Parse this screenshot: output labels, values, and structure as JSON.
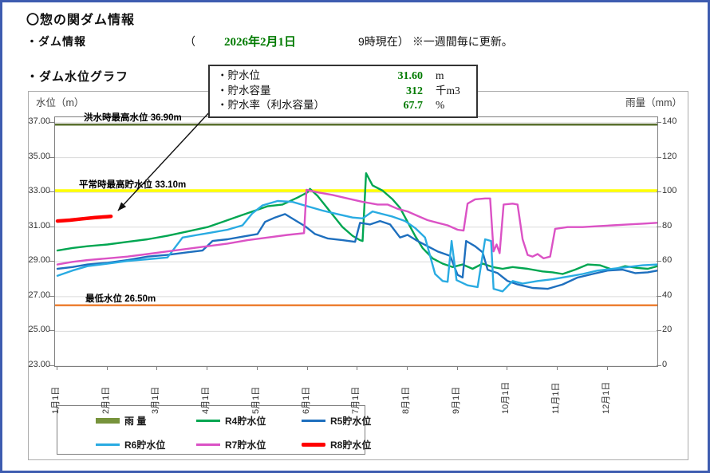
{
  "page": {
    "title": "〇惣の関ダム情報",
    "info_label": "・ダム情報",
    "info_paren_open": "（",
    "info_date": "2026年2月1日",
    "info_time": "9時現在）",
    "info_note": "※一週間毎に更新。",
    "graph_label": "・ダム水位グラフ"
  },
  "callout": {
    "value_color": "#007a00",
    "rows": [
      {
        "label": "・貯水位",
        "value": "31.60",
        "unit": "m"
      },
      {
        "label": "・貯水容量",
        "value": "312",
        "unit": "千m3"
      },
      {
        "label": "・貯水率（利水容量）",
        "value": "67.7",
        "unit": "%"
      }
    ]
  },
  "chart_data": {
    "type": "line",
    "left_axis": {
      "label": "水位（m）",
      "min": 23,
      "max": 37,
      "step": 2,
      "tick_labels": [
        "37.00",
        "35.00",
        "33.00",
        "31.00",
        "29.00",
        "27.00",
        "25.00",
        "23.00"
      ]
    },
    "right_axis": {
      "label": "雨量（mm）",
      "min": 0,
      "max": 140,
      "step": 20,
      "tick_labels": [
        "140",
        "120",
        "100",
        "80",
        "60",
        "40",
        "20",
        "0"
      ]
    },
    "x_axis": {
      "ticks": [
        "1月1日",
        "2月1日",
        "3月1日",
        "4月1日",
        "5月1日",
        "6月1日",
        "7月1日",
        "8月1日",
        "9月1日",
        "10月1日",
        "11月1日",
        "12月1日"
      ]
    },
    "reference_lines": [
      {
        "label": "洪水時最高水位 36.90m",
        "value": 36.9,
        "color": "#5a702f",
        "width": 2.5
      },
      {
        "label": "平常時最高貯水位 33.10m",
        "value": 33.1,
        "color": "#ffff00",
        "width": 3.5
      },
      {
        "label": "最低水位 26.50m",
        "value": 26.5,
        "color": "#ed8033",
        "width": 2.5
      }
    ],
    "rainfall": {
      "name": "雨 量",
      "color": "#77933c",
      "unit": "mm",
      "values": []
    },
    "series": [
      {
        "name": "R4貯水位",
        "color": "#00a651",
        "width": 2.4,
        "points": [
          [
            0,
            29.65
          ],
          [
            0.3,
            29.8
          ],
          [
            0.6,
            29.9
          ],
          [
            1,
            30.0
          ],
          [
            1.4,
            30.15
          ],
          [
            1.8,
            30.3
          ],
          [
            2.2,
            30.5
          ],
          [
            2.6,
            30.75
          ],
          [
            3,
            31.0
          ],
          [
            3.3,
            31.3
          ],
          [
            3.6,
            31.6
          ],
          [
            3.9,
            31.9
          ],
          [
            4.2,
            32.2
          ],
          [
            4.5,
            32.3
          ],
          [
            4.8,
            32.7
          ],
          [
            5.0,
            33.0
          ],
          [
            5.05,
            33.2
          ],
          [
            5.2,
            32.8
          ],
          [
            5.45,
            31.9
          ],
          [
            5.7,
            31.0
          ],
          [
            5.9,
            30.5
          ],
          [
            6.05,
            30.25
          ],
          [
            6.1,
            30.2
          ],
          [
            6.17,
            34.1
          ],
          [
            6.3,
            33.4
          ],
          [
            6.5,
            33.1
          ],
          [
            6.7,
            32.6
          ],
          [
            6.85,
            32.1
          ],
          [
            7.0,
            31.3
          ],
          [
            7.15,
            30.5
          ],
          [
            7.3,
            29.8
          ],
          [
            7.5,
            29.2
          ],
          [
            7.7,
            28.9
          ],
          [
            7.9,
            28.7
          ],
          [
            8.1,
            28.85
          ],
          [
            8.3,
            28.6
          ],
          [
            8.5,
            28.9
          ],
          [
            8.7,
            28.7
          ],
          [
            8.9,
            28.6
          ],
          [
            9.1,
            28.7
          ],
          [
            9.4,
            28.6
          ],
          [
            9.7,
            28.45
          ],
          [
            9.9,
            28.4
          ],
          [
            10.1,
            28.3
          ],
          [
            10.35,
            28.55
          ],
          [
            10.6,
            28.85
          ],
          [
            10.85,
            28.8
          ],
          [
            11.1,
            28.55
          ],
          [
            11.35,
            28.75
          ],
          [
            11.6,
            28.65
          ],
          [
            11.8,
            28.6
          ],
          [
            12,
            28.75
          ]
        ]
      },
      {
        "name": "R5貯水位",
        "color": "#1e6fbe",
        "width": 2.4,
        "points": [
          [
            0,
            28.6
          ],
          [
            0.3,
            28.7
          ],
          [
            0.6,
            28.85
          ],
          [
            1,
            28.95
          ],
          [
            1.4,
            29.1
          ],
          [
            1.8,
            29.3
          ],
          [
            2.2,
            29.4
          ],
          [
            2.6,
            29.55
          ],
          [
            2.9,
            29.65
          ],
          [
            3.1,
            30.2
          ],
          [
            3.4,
            30.3
          ],
          [
            3.7,
            30.45
          ],
          [
            4,
            30.6
          ],
          [
            4.15,
            31.3
          ],
          [
            4.35,
            31.55
          ],
          [
            4.55,
            31.75
          ],
          [
            4.75,
            31.4
          ],
          [
            4.95,
            31.05
          ],
          [
            5.15,
            30.6
          ],
          [
            5.4,
            30.35
          ],
          [
            5.7,
            30.25
          ],
          [
            5.95,
            30.15
          ],
          [
            6.05,
            31.25
          ],
          [
            6.25,
            31.15
          ],
          [
            6.45,
            31.35
          ],
          [
            6.65,
            31.15
          ],
          [
            6.85,
            30.4
          ],
          [
            7.0,
            30.55
          ],
          [
            7.2,
            30.2
          ],
          [
            7.4,
            29.9
          ],
          [
            7.6,
            29.6
          ],
          [
            7.85,
            29.35
          ],
          [
            8.0,
            28.25
          ],
          [
            8.1,
            28.1
          ],
          [
            8.17,
            30.2
          ],
          [
            8.35,
            29.9
          ],
          [
            8.5,
            29.55
          ],
          [
            8.6,
            28.55
          ],
          [
            8.8,
            28.35
          ],
          [
            9.0,
            27.9
          ],
          [
            9.2,
            27.7
          ],
          [
            9.5,
            27.5
          ],
          [
            9.8,
            27.45
          ],
          [
            10.1,
            27.7
          ],
          [
            10.4,
            28.1
          ],
          [
            10.7,
            28.3
          ],
          [
            11.0,
            28.5
          ],
          [
            11.3,
            28.55
          ],
          [
            11.55,
            28.35
          ],
          [
            11.8,
            28.4
          ],
          [
            12,
            28.5
          ]
        ]
      },
      {
        "name": "R6貯水位",
        "color": "#29abe2",
        "width": 2.4,
        "points": [
          [
            0,
            28.2
          ],
          [
            0.3,
            28.5
          ],
          [
            0.6,
            28.75
          ],
          [
            1,
            28.9
          ],
          [
            1.4,
            29.05
          ],
          [
            1.8,
            29.15
          ],
          [
            2.2,
            29.25
          ],
          [
            2.5,
            30.4
          ],
          [
            2.8,
            30.55
          ],
          [
            3.1,
            30.7
          ],
          [
            3.4,
            30.85
          ],
          [
            3.7,
            31.1
          ],
          [
            3.9,
            31.8
          ],
          [
            4.1,
            32.25
          ],
          [
            4.4,
            32.5
          ],
          [
            4.7,
            32.45
          ],
          [
            5.0,
            32.2
          ],
          [
            5.3,
            31.95
          ],
          [
            5.6,
            31.75
          ],
          [
            5.9,
            31.55
          ],
          [
            6.1,
            31.5
          ],
          [
            6.3,
            31.9
          ],
          [
            6.5,
            31.75
          ],
          [
            6.7,
            31.6
          ],
          [
            6.95,
            31.35
          ],
          [
            7.15,
            30.95
          ],
          [
            7.35,
            30.4
          ],
          [
            7.55,
            28.3
          ],
          [
            7.7,
            27.9
          ],
          [
            7.8,
            27.85
          ],
          [
            7.88,
            30.2
          ],
          [
            7.98,
            27.95
          ],
          [
            8.2,
            27.65
          ],
          [
            8.4,
            27.55
          ],
          [
            8.55,
            30.3
          ],
          [
            8.67,
            30.2
          ],
          [
            8.72,
            27.45
          ],
          [
            8.9,
            27.3
          ],
          [
            9.1,
            27.9
          ],
          [
            9.3,
            27.75
          ],
          [
            9.6,
            27.9
          ],
          [
            9.9,
            28.0
          ],
          [
            10.2,
            28.15
          ],
          [
            10.5,
            28.3
          ],
          [
            10.8,
            28.5
          ],
          [
            11.1,
            28.6
          ],
          [
            11.4,
            28.7
          ],
          [
            11.7,
            28.8
          ],
          [
            12,
            28.85
          ]
        ]
      },
      {
        "name": "R7貯水位",
        "color": "#db52c5",
        "width": 2.4,
        "points": [
          [
            0,
            28.85
          ],
          [
            0.3,
            29.0
          ],
          [
            0.6,
            29.1
          ],
          [
            1,
            29.2
          ],
          [
            1.4,
            29.3
          ],
          [
            1.8,
            29.45
          ],
          [
            2.2,
            29.6
          ],
          [
            2.6,
            29.75
          ],
          [
            3,
            29.9
          ],
          [
            3.4,
            30.05
          ],
          [
            3.8,
            30.25
          ],
          [
            4.2,
            30.4
          ],
          [
            4.6,
            30.55
          ],
          [
            4.93,
            30.65
          ],
          [
            4.98,
            33.15
          ],
          [
            5.2,
            33.0
          ],
          [
            5.5,
            32.85
          ],
          [
            5.8,
            32.65
          ],
          [
            6.1,
            32.45
          ],
          [
            6.4,
            32.3
          ],
          [
            6.6,
            32.3
          ],
          [
            6.8,
            32.05
          ],
          [
            7.0,
            31.9
          ],
          [
            7.2,
            31.65
          ],
          [
            7.4,
            31.4
          ],
          [
            7.6,
            31.25
          ],
          [
            7.8,
            31.1
          ],
          [
            8.0,
            30.85
          ],
          [
            8.12,
            30.8
          ],
          [
            8.2,
            32.35
          ],
          [
            8.35,
            32.6
          ],
          [
            8.55,
            32.65
          ],
          [
            8.65,
            32.65
          ],
          [
            8.72,
            29.6
          ],
          [
            8.78,
            30.0
          ],
          [
            8.84,
            29.5
          ],
          [
            8.92,
            32.3
          ],
          [
            9.1,
            32.35
          ],
          [
            9.2,
            32.3
          ],
          [
            9.3,
            30.3
          ],
          [
            9.4,
            29.4
          ],
          [
            9.5,
            29.3
          ],
          [
            9.6,
            29.45
          ],
          [
            9.72,
            29.2
          ],
          [
            9.85,
            29.3
          ],
          [
            9.95,
            30.9
          ],
          [
            10.2,
            31.0
          ],
          [
            10.5,
            31.0
          ],
          [
            10.8,
            31.05
          ],
          [
            11.1,
            31.1
          ],
          [
            11.4,
            31.15
          ],
          [
            11.7,
            31.2
          ],
          [
            12,
            31.25
          ]
        ]
      },
      {
        "name": "R8貯水位",
        "color": "#ff0000",
        "width": 4.5,
        "points": [
          [
            0,
            31.35
          ],
          [
            0.25,
            31.4
          ],
          [
            0.5,
            31.48
          ],
          [
            0.75,
            31.55
          ],
          [
            1.0,
            31.6
          ],
          [
            1.07,
            31.62
          ]
        ]
      }
    ],
    "legend": [
      {
        "label": "雨 量",
        "color": "#77933c",
        "swatch": "bar"
      },
      {
        "label": "R4貯水位",
        "color": "#00a651",
        "swatch": "line"
      },
      {
        "label": "R5貯水位",
        "color": "#1e6fbe",
        "swatch": "line"
      },
      {
        "label": "R6貯水位",
        "color": "#29abe2",
        "swatch": "line"
      },
      {
        "label": "R7貯水位",
        "color": "#db52c5",
        "swatch": "line"
      },
      {
        "label": "R8貯水位",
        "color": "#ff0000",
        "swatch": "thick"
      }
    ],
    "legend_position": "bottom-left",
    "grid": true
  }
}
